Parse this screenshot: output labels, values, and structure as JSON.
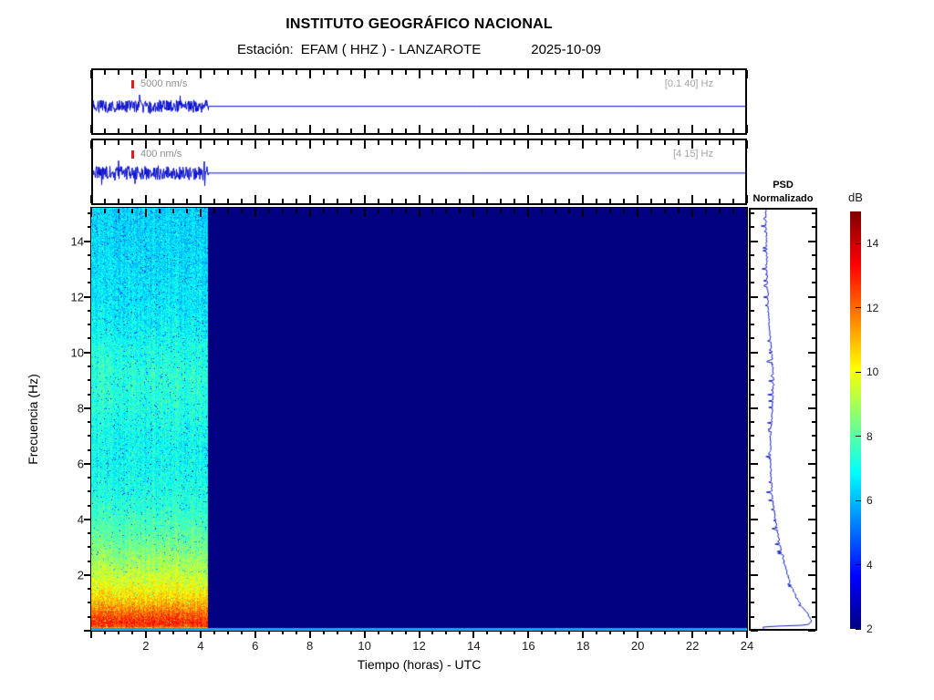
{
  "header": {
    "title": "INSTITUTO GEOGRÁFICO NACIONAL",
    "station_label": "Estación:",
    "station_name": "EFAM ( HHZ ) - LANZAROTE",
    "date": "2025-10-09"
  },
  "trace_panels": [
    {
      "scale_label": "5000 nm/s",
      "filter_label": "[0.1 40] Hz"
    },
    {
      "scale_label": "400 nm/s",
      "filter_label": "[4 15] Hz"
    }
  ],
  "axes": {
    "x_label": "Tiempo (horas) - UTC",
    "y_label": "Frecuencia  (Hz)",
    "x_ticks": [
      2,
      4,
      6,
      8,
      10,
      12,
      14,
      16,
      18,
      20,
      22,
      24
    ],
    "y_ticks": [
      2,
      4,
      6,
      8,
      10,
      12,
      14
    ],
    "x_minor_step": 0.5,
    "y_minor_step": 0.5,
    "x_range": [
      0,
      24
    ],
    "y_range": [
      0,
      15.2
    ]
  },
  "psd_panel": {
    "title_line1": "PSD",
    "title_line2": "Normalizado"
  },
  "colorbar": {
    "label": "dB",
    "ticks": [
      2,
      4,
      6,
      8,
      10,
      12,
      14
    ],
    "range": [
      2,
      15
    ],
    "colormap": "jet"
  },
  "colors": {
    "trace_blue": "#0008cc",
    "nodata_navy": "#000084",
    "marker_red": "#d42222"
  },
  "chart_data": [
    {
      "type": "line",
      "name": "seismogram-broadband",
      "scale_bar": "5000 nm/s",
      "bandpass_hz": [
        0.1,
        40
      ],
      "x_unit": "hours UTC",
      "x_range": [
        0,
        24
      ],
      "signal_present_hours": [
        0,
        4.25
      ],
      "note": "continuous noisy seismic signal from 0 h to ~4.25 h, flat zero baseline afterwards"
    },
    {
      "type": "line",
      "name": "seismogram-filtered",
      "scale_bar": "400 nm/s",
      "bandpass_hz": [
        4,
        15
      ],
      "x_unit": "hours UTC",
      "x_range": [
        0,
        24
      ],
      "signal_present_hours": [
        0,
        4.25
      ],
      "note": "continuous noisy seismic signal from 0 h to ~4.25 h, flat zero baseline afterwards"
    },
    {
      "type": "heatmap",
      "name": "spectrogram",
      "xlabel": "Tiempo (horas) - UTC",
      "ylabel": "Frecuencia  (Hz)",
      "x_range_hours": [
        0,
        24
      ],
      "y_range_hz": [
        0,
        15.2
      ],
      "colormap": "jet",
      "colorbar_label": "dB",
      "colorbar_range": [
        2,
        15
      ],
      "data_present_hours": [
        0,
        4.25
      ],
      "nodata_db": 2,
      "noise_db": 0.9,
      "dropout_probability": 0.02,
      "bottom_strip_hz": 0.1,
      "bottom_strip_db": 5.8,
      "freq_profile_db": [
        [
          0.0,
          6.0
        ],
        [
          0.08,
          6.0
        ],
        [
          0.14,
          12.4
        ],
        [
          0.3,
          12.9
        ],
        [
          0.6,
          12.2
        ],
        [
          0.9,
          11.3
        ],
        [
          1.2,
          10.6
        ],
        [
          1.6,
          9.9
        ],
        [
          2.0,
          9.4
        ],
        [
          2.5,
          8.9
        ],
        [
          3.0,
          8.4
        ],
        [
          3.5,
          8.0
        ],
        [
          4.0,
          7.7
        ],
        [
          4.5,
          7.4
        ],
        [
          5.0,
          7.2
        ],
        [
          6.0,
          7.0
        ],
        [
          7.0,
          7.0
        ],
        [
          8.0,
          7.3
        ],
        [
          9.0,
          7.4
        ],
        [
          10.0,
          7.2
        ],
        [
          11.0,
          6.8
        ],
        [
          12.0,
          6.6
        ],
        [
          13.0,
          6.5
        ],
        [
          14.0,
          6.4
        ],
        [
          15.2,
          6.3
        ]
      ]
    },
    {
      "type": "line",
      "name": "psd-normalizado",
      "orientation": "vertical",
      "x_axis": "normalized PSD (dB)",
      "y_axis": "Frecuencia (Hz)",
      "y_range_hz": [
        0,
        15.2
      ],
      "profile_source": "same freq_profile_db as spectrogram; curve drifts right toward low frequencies, hooks back left at the very bottom"
    }
  ]
}
